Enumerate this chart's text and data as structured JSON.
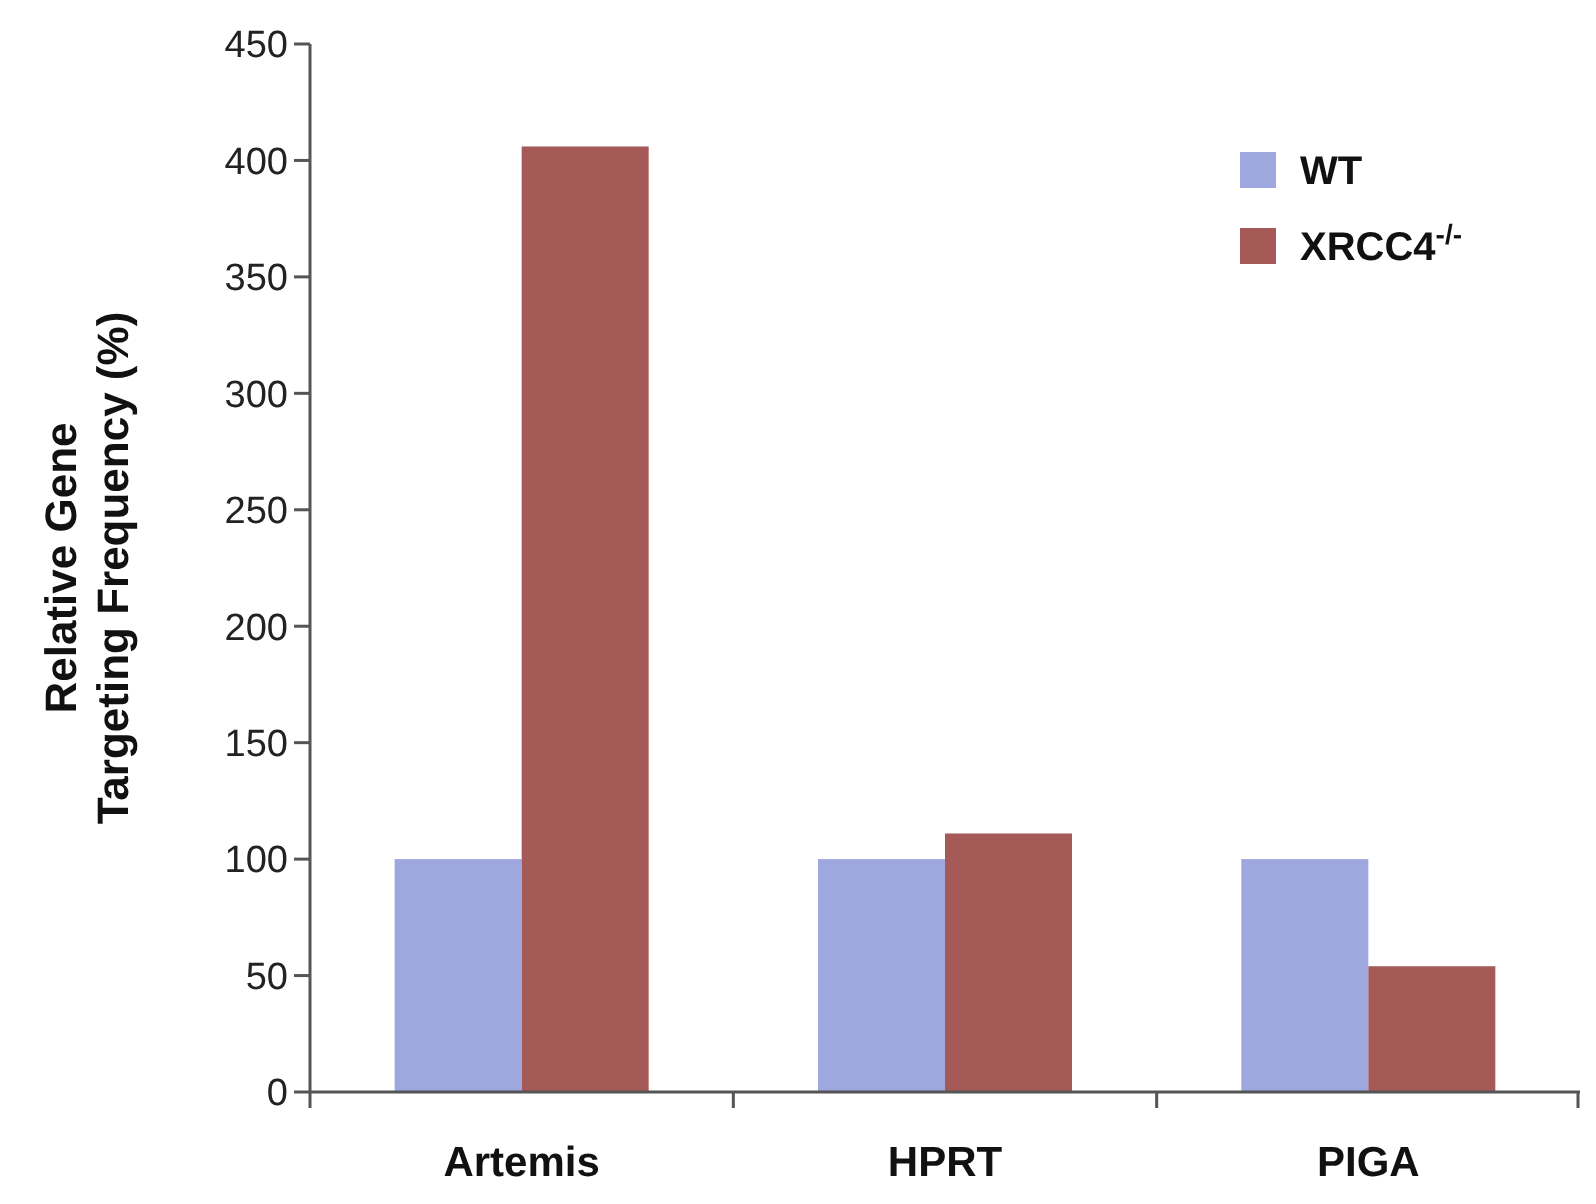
{
  "chart_data": {
    "type": "bar",
    "ylabel": "Relative Gene\nTargeting Frequency (%)",
    "categories": [
      "Artemis",
      "HPRT",
      "PIGA"
    ],
    "series": [
      {
        "name": "WT",
        "color": "#9ea7de",
        "values": [
          100,
          100,
          100
        ]
      },
      {
        "name": "XRCC4$^{-/-}$",
        "color": "#a65a57",
        "values": [
          406,
          111,
          54
        ]
      }
    ],
    "ylim": [
      0,
      450
    ],
    "yticks": [
      0,
      50,
      100,
      150,
      200,
      250,
      300,
      350,
      400,
      450
    ],
    "grid": false,
    "legend": "top right"
  }
}
